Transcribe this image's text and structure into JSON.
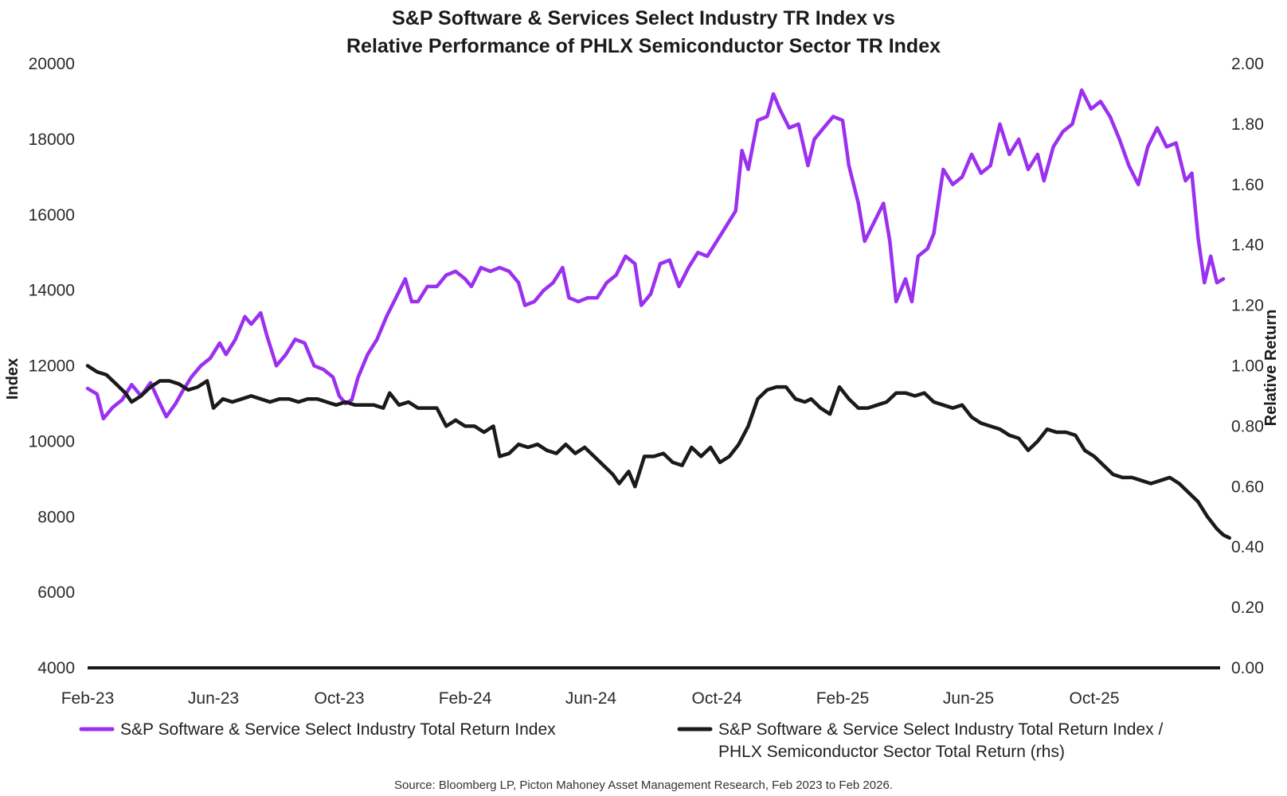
{
  "chart_data": {
    "type": "line",
    "title_line1": "S&P Software & Services Select Industry TR Index vs",
    "title_line2": "Relative Performance of PHLX Semiconductor Sector TR Index",
    "ylabel": "Index",
    "y2label": "Relative Return",
    "ylim": [
      4000,
      20000
    ],
    "y2lim": [
      0.0,
      2.0
    ],
    "yticks": [
      "20000",
      "18000",
      "16000",
      "14000",
      "12000",
      "10000",
      "8000",
      "6000",
      "4000"
    ],
    "y2ticks": [
      "2.00",
      "1.80",
      "1.60",
      "1.40",
      "1.20",
      "1.00",
      "0.80",
      "0.60",
      "0.40",
      "0.20",
      "0.00"
    ],
    "x_tick_labels": [
      "Feb-23",
      "Jun-23",
      "Oct-23",
      "Feb-24",
      "Jun-24",
      "Oct-24",
      "Feb-25",
      "Jun-25",
      "Oct-25"
    ],
    "x_start_month": 0,
    "x_end_month": 36.4,
    "grid": false,
    "legend_position": "bottom",
    "source": "Source: Bloomberg LP, Picton Mahoney Asset Management Research, Feb 2023 to Feb 2026.",
    "series": [
      {
        "name": "S&P Software & Service Select Industry Total Return Index",
        "legend_line1": "S&P Software & Service Select Industry Total Return Index",
        "axis": "left",
        "color": "#9b30ef",
        "points": [
          [
            0.0,
            11400
          ],
          [
            0.3,
            11250
          ],
          [
            0.5,
            10600
          ],
          [
            0.8,
            10900
          ],
          [
            1.1,
            11100
          ],
          [
            1.4,
            11500
          ],
          [
            1.7,
            11200
          ],
          [
            2.0,
            11550
          ],
          [
            2.3,
            11000
          ],
          [
            2.5,
            10650
          ],
          [
            2.8,
            11000
          ],
          [
            3.0,
            11300
          ],
          [
            3.3,
            11700
          ],
          [
            3.6,
            12000
          ],
          [
            3.9,
            12200
          ],
          [
            4.2,
            12600
          ],
          [
            4.4,
            12300
          ],
          [
            4.7,
            12700
          ],
          [
            5.0,
            13300
          ],
          [
            5.2,
            13100
          ],
          [
            5.5,
            13400
          ],
          [
            5.7,
            12800
          ],
          [
            6.0,
            12000
          ],
          [
            6.3,
            12300
          ],
          [
            6.6,
            12700
          ],
          [
            6.9,
            12600
          ],
          [
            7.2,
            12000
          ],
          [
            7.5,
            11900
          ],
          [
            7.8,
            11700
          ],
          [
            8.0,
            11200
          ],
          [
            8.2,
            11000
          ],
          [
            8.4,
            11100
          ],
          [
            8.6,
            11700
          ],
          [
            8.9,
            12300
          ],
          [
            9.2,
            12700
          ],
          [
            9.5,
            13300
          ],
          [
            9.8,
            13800
          ],
          [
            10.1,
            14300
          ],
          [
            10.3,
            13700
          ],
          [
            10.5,
            13700
          ],
          [
            10.8,
            14100
          ],
          [
            11.1,
            14100
          ],
          [
            11.4,
            14400
          ],
          [
            11.7,
            14500
          ],
          [
            12.0,
            14300
          ],
          [
            12.2,
            14100
          ],
          [
            12.5,
            14600
          ],
          [
            12.8,
            14500
          ],
          [
            13.1,
            14600
          ],
          [
            13.4,
            14500
          ],
          [
            13.7,
            14200
          ],
          [
            13.9,
            13600
          ],
          [
            14.2,
            13700
          ],
          [
            14.5,
            14000
          ],
          [
            14.8,
            14200
          ],
          [
            15.1,
            14600
          ],
          [
            15.3,
            13800
          ],
          [
            15.6,
            13700
          ],
          [
            15.9,
            13800
          ],
          [
            16.2,
            13800
          ],
          [
            16.5,
            14200
          ],
          [
            16.8,
            14400
          ],
          [
            17.1,
            14900
          ],
          [
            17.4,
            14700
          ],
          [
            17.6,
            13600
          ],
          [
            17.9,
            13900
          ],
          [
            18.2,
            14700
          ],
          [
            18.5,
            14800
          ],
          [
            18.8,
            14100
          ],
          [
            19.1,
            14600
          ],
          [
            19.4,
            15000
          ],
          [
            19.7,
            14900
          ],
          [
            20.0,
            15300
          ],
          [
            20.3,
            15700
          ],
          [
            20.6,
            16100
          ],
          [
            20.8,
            17700
          ],
          [
            21.0,
            17200
          ],
          [
            21.3,
            18500
          ],
          [
            21.6,
            18600
          ],
          [
            21.8,
            19200
          ],
          [
            22.0,
            18800
          ],
          [
            22.3,
            18300
          ],
          [
            22.6,
            18400
          ],
          [
            22.9,
            17300
          ],
          [
            23.1,
            18000
          ],
          [
            23.4,
            18300
          ],
          [
            23.7,
            18600
          ],
          [
            24.0,
            18500
          ],
          [
            24.2,
            17300
          ],
          [
            24.5,
            16300
          ],
          [
            24.7,
            15300
          ],
          [
            25.0,
            15800
          ],
          [
            25.3,
            16300
          ],
          [
            25.5,
            15300
          ],
          [
            25.7,
            13700
          ],
          [
            26.0,
            14300
          ],
          [
            26.2,
            13700
          ],
          [
            26.4,
            14900
          ],
          [
            26.7,
            15100
          ],
          [
            26.9,
            15500
          ],
          [
            27.2,
            17200
          ],
          [
            27.5,
            16800
          ],
          [
            27.8,
            17000
          ],
          [
            28.1,
            17600
          ],
          [
            28.4,
            17100
          ],
          [
            28.7,
            17300
          ],
          [
            29.0,
            18400
          ],
          [
            29.3,
            17600
          ],
          [
            29.6,
            18000
          ],
          [
            29.9,
            17200
          ],
          [
            30.2,
            17600
          ],
          [
            30.4,
            16900
          ],
          [
            30.7,
            17800
          ],
          [
            31.0,
            18200
          ],
          [
            31.3,
            18400
          ],
          [
            31.6,
            19300
          ],
          [
            31.9,
            18800
          ],
          [
            32.2,
            19000
          ],
          [
            32.5,
            18600
          ],
          [
            32.8,
            18000
          ],
          [
            33.1,
            17300
          ],
          [
            33.4,
            16800
          ],
          [
            33.7,
            17800
          ],
          [
            34.0,
            18300
          ],
          [
            34.3,
            17800
          ],
          [
            34.6,
            17900
          ],
          [
            34.9,
            16900
          ],
          [
            35.1,
            17100
          ],
          [
            35.3,
            15400
          ],
          [
            35.5,
            14200
          ],
          [
            35.7,
            14900
          ],
          [
            35.9,
            14200
          ],
          [
            36.1,
            14300
          ]
        ]
      },
      {
        "name": "S&P Software & Service Select Industry Total Return Index / PHLX Semiconductor Sector Total Return (rhs)",
        "legend_line1": "S&P Software & Service Select Industry Total Return Index /",
        "legend_line2": "PHLX Semiconductor Sector Total Return (rhs)",
        "axis": "right",
        "color": "#1a1a1a",
        "points": [
          [
            0.0,
            1.0
          ],
          [
            0.3,
            0.98
          ],
          [
            0.6,
            0.97
          ],
          [
            0.9,
            0.94
          ],
          [
            1.2,
            0.91
          ],
          [
            1.4,
            0.88
          ],
          [
            1.7,
            0.9
          ],
          [
            2.0,
            0.93
          ],
          [
            2.3,
            0.95
          ],
          [
            2.6,
            0.95
          ],
          [
            2.9,
            0.94
          ],
          [
            3.2,
            0.92
          ],
          [
            3.5,
            0.93
          ],
          [
            3.8,
            0.95
          ],
          [
            4.0,
            0.86
          ],
          [
            4.3,
            0.89
          ],
          [
            4.6,
            0.88
          ],
          [
            4.9,
            0.89
          ],
          [
            5.2,
            0.9
          ],
          [
            5.5,
            0.89
          ],
          [
            5.8,
            0.88
          ],
          [
            6.1,
            0.89
          ],
          [
            6.4,
            0.89
          ],
          [
            6.7,
            0.88
          ],
          [
            7.0,
            0.89
          ],
          [
            7.3,
            0.89
          ],
          [
            7.6,
            0.88
          ],
          [
            7.9,
            0.87
          ],
          [
            8.2,
            0.88
          ],
          [
            8.5,
            0.87
          ],
          [
            8.8,
            0.87
          ],
          [
            9.1,
            0.87
          ],
          [
            9.4,
            0.86
          ],
          [
            9.6,
            0.91
          ],
          [
            9.9,
            0.87
          ],
          [
            10.2,
            0.88
          ],
          [
            10.5,
            0.86
          ],
          [
            10.8,
            0.86
          ],
          [
            11.1,
            0.86
          ],
          [
            11.4,
            0.8
          ],
          [
            11.7,
            0.82
          ],
          [
            12.0,
            0.8
          ],
          [
            12.3,
            0.8
          ],
          [
            12.6,
            0.78
          ],
          [
            12.9,
            0.8
          ],
          [
            13.1,
            0.7
          ],
          [
            13.4,
            0.71
          ],
          [
            13.7,
            0.74
          ],
          [
            14.0,
            0.73
          ],
          [
            14.3,
            0.74
          ],
          [
            14.6,
            0.72
          ],
          [
            14.9,
            0.71
          ],
          [
            15.2,
            0.74
          ],
          [
            15.5,
            0.71
          ],
          [
            15.8,
            0.73
          ],
          [
            16.1,
            0.7
          ],
          [
            16.4,
            0.67
          ],
          [
            16.7,
            0.64
          ],
          [
            16.9,
            0.61
          ],
          [
            17.2,
            0.65
          ],
          [
            17.4,
            0.6
          ],
          [
            17.7,
            0.7
          ],
          [
            18.0,
            0.7
          ],
          [
            18.3,
            0.71
          ],
          [
            18.6,
            0.68
          ],
          [
            18.9,
            0.67
          ],
          [
            19.2,
            0.73
          ],
          [
            19.5,
            0.7
          ],
          [
            19.8,
            0.73
          ],
          [
            20.1,
            0.68
          ],
          [
            20.4,
            0.7
          ],
          [
            20.7,
            0.74
          ],
          [
            21.0,
            0.8
          ],
          [
            21.3,
            0.89
          ],
          [
            21.6,
            0.92
          ],
          [
            21.9,
            0.93
          ],
          [
            22.2,
            0.93
          ],
          [
            22.5,
            0.89
          ],
          [
            22.8,
            0.88
          ],
          [
            23.0,
            0.89
          ],
          [
            23.3,
            0.86
          ],
          [
            23.6,
            0.84
          ],
          [
            23.9,
            0.93
          ],
          [
            24.2,
            0.89
          ],
          [
            24.5,
            0.86
          ],
          [
            24.8,
            0.86
          ],
          [
            25.1,
            0.87
          ],
          [
            25.4,
            0.88
          ],
          [
            25.7,
            0.91
          ],
          [
            26.0,
            0.91
          ],
          [
            26.3,
            0.9
          ],
          [
            26.6,
            0.91
          ],
          [
            26.9,
            0.88
          ],
          [
            27.2,
            0.87
          ],
          [
            27.5,
            0.86
          ],
          [
            27.8,
            0.87
          ],
          [
            28.1,
            0.83
          ],
          [
            28.4,
            0.81
          ],
          [
            28.7,
            0.8
          ],
          [
            29.0,
            0.79
          ],
          [
            29.3,
            0.77
          ],
          [
            29.6,
            0.76
          ],
          [
            29.9,
            0.72
          ],
          [
            30.2,
            0.75
          ],
          [
            30.5,
            0.79
          ],
          [
            30.8,
            0.78
          ],
          [
            31.1,
            0.78
          ],
          [
            31.4,
            0.77
          ],
          [
            31.7,
            0.72
          ],
          [
            32.0,
            0.7
          ],
          [
            32.3,
            0.67
          ],
          [
            32.6,
            0.64
          ],
          [
            32.9,
            0.63
          ],
          [
            33.2,
            0.63
          ],
          [
            33.5,
            0.62
          ],
          [
            33.8,
            0.61
          ],
          [
            34.1,
            0.62
          ],
          [
            34.4,
            0.63
          ],
          [
            34.7,
            0.61
          ],
          [
            35.0,
            0.58
          ],
          [
            35.3,
            0.55
          ],
          [
            35.6,
            0.5
          ],
          [
            35.9,
            0.46
          ],
          [
            36.1,
            0.44
          ],
          [
            36.3,
            0.43
          ]
        ]
      }
    ]
  }
}
